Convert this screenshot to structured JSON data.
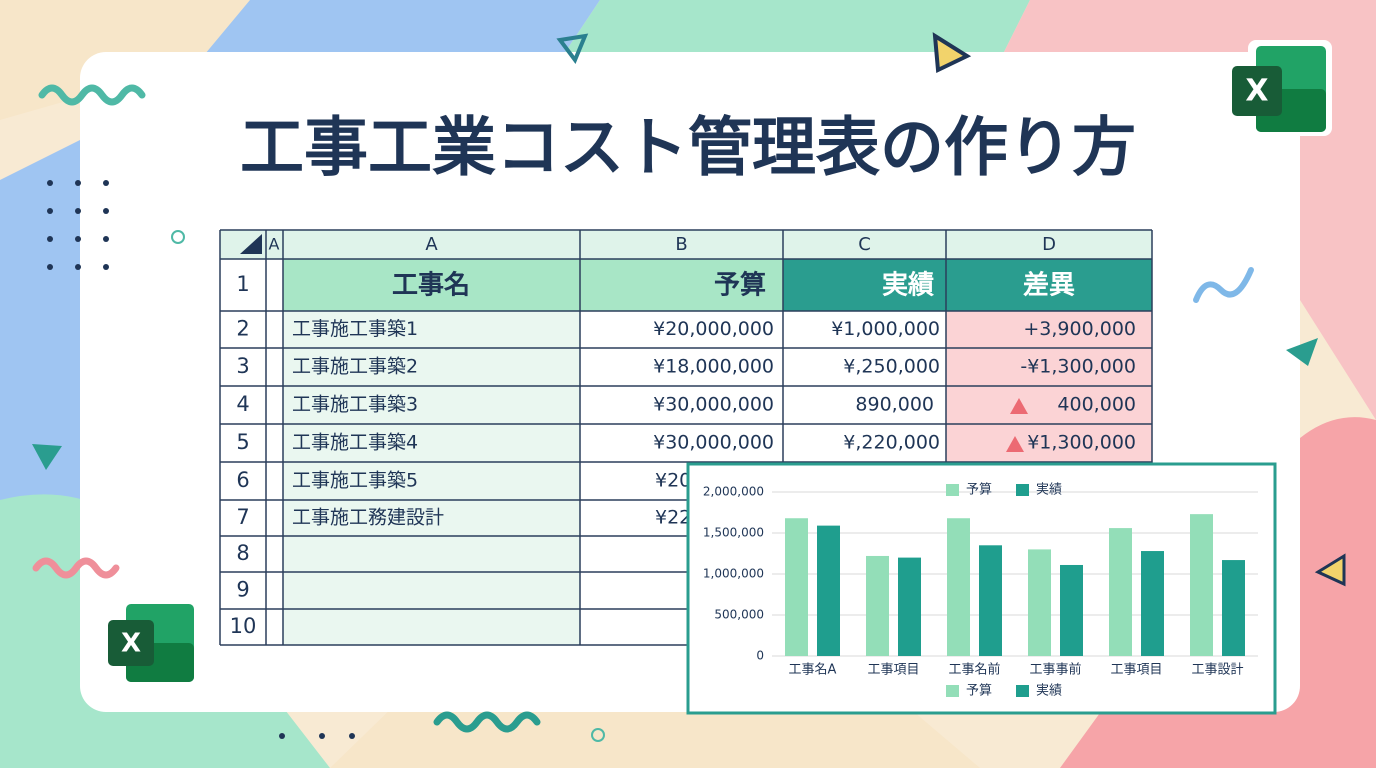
{
  "title": "工事工業コスト管理表の作り方",
  "icons": {
    "excel_top": "X",
    "excel_bottom": "X"
  },
  "table": {
    "column_headers": [
      "A",
      "A",
      "B",
      "C",
      "D"
    ],
    "row_numbers": [
      "1",
      "2",
      "3",
      "4",
      "5",
      "6",
      "7",
      "8",
      "9",
      "10"
    ],
    "header": [
      "工事名",
      "予算",
      "実績",
      "差異"
    ],
    "rows": [
      [
        "工事施工事築1",
        "¥20,000,000",
        "¥1,000,000",
        "+3,900,000"
      ],
      [
        "工事施工事築2",
        "¥18,000,000",
        "¥,250,000",
        "-¥1,300,000"
      ],
      [
        "工事施工事築3",
        "¥30,000,000",
        "890,000",
        "400,000"
      ],
      [
        "工事施工事築4",
        "¥30,000,000",
        "¥,220,000",
        "¥1,300,000"
      ],
      [
        "工事施工事築5",
        "¥20"
      ],
      [
        "工事施工務建設計",
        "¥22"
      ]
    ]
  },
  "chart_data": {
    "type": "bar",
    "categories": [
      "工事名A",
      "工事項目",
      "工事名前",
      "工事事前",
      "工事項目",
      "工事設計"
    ],
    "series": [
      {
        "name": "予算",
        "color": "#93deb8",
        "values": [
          1680000,
          1220000,
          1680000,
          1300000,
          1560000,
          1730000
        ]
      },
      {
        "name": "実績",
        "color": "#1f9e8e",
        "values": [
          1590000,
          1200000,
          1350000,
          1110000,
          1280000,
          1170000
        ]
      }
    ],
    "ylim": [
      0,
      2000000
    ],
    "yticks": [
      0,
      {
        "value": 500000,
        "label": "500,000"
      },
      {
        "value": 1000000,
        "label": "1,000,000"
      },
      {
        "value": 1500000,
        "label": "1,500,000"
      },
      {
        "value": 2000000,
        "label": "2,000,000"
      }
    ],
    "grid": true
  }
}
